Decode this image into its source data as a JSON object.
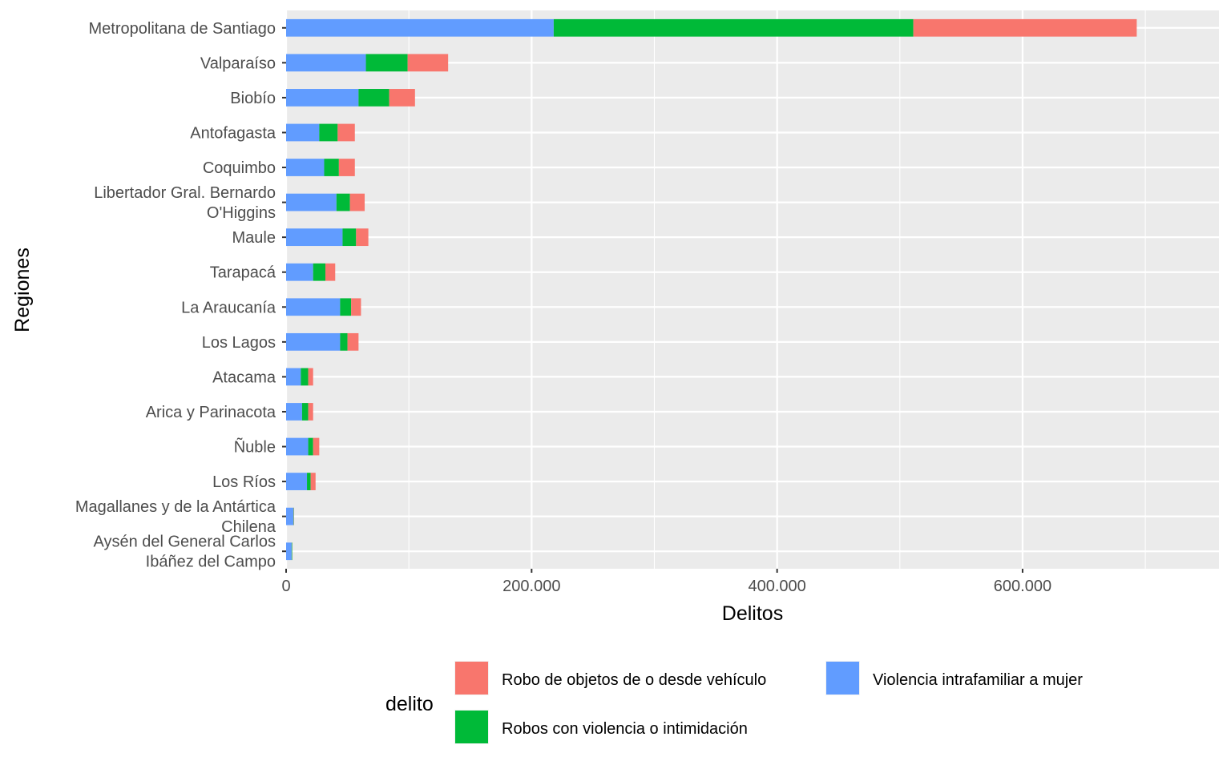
{
  "chart_data": {
    "type": "bar",
    "orientation": "horizontal",
    "stacked": true,
    "xlabel": "Delitos",
    "ylabel": "Regiones",
    "xlim": [
      0,
      760000
    ],
    "x_ticks": [
      0,
      200000,
      400000,
      600000
    ],
    "x_tick_labels": [
      "0",
      "200.000",
      "400.000",
      "600.000"
    ],
    "grid": true,
    "legend": {
      "title": "delito",
      "position": "bottom",
      "entries": [
        {
          "name": "Robo de objetos de o desde vehículo",
          "color": "#F8766D"
        },
        {
          "name": "Robos con violencia o intimidación",
          "color": "#00BA38"
        },
        {
          "name": "Violencia intrafamiliar a mujer",
          "color": "#619CFF"
        }
      ]
    },
    "categories": [
      [
        "Metropolitana de Santiago"
      ],
      [
        "Valparaíso"
      ],
      [
        "Biobío"
      ],
      [
        "Antofagasta"
      ],
      [
        "Coquimbo"
      ],
      [
        "Libertador Gral. Bernardo",
        "O'Higgins"
      ],
      [
        "Maule"
      ],
      [
        "Tarapacá"
      ],
      [
        "La Araucanía"
      ],
      [
        "Los Lagos"
      ],
      [
        "Atacama"
      ],
      [
        "Arica y Parinacota"
      ],
      [
        "Ñuble"
      ],
      [
        "Los Ríos"
      ],
      [
        "Magallanes y de la Antártica",
        "Chilena"
      ],
      [
        "Aysén del General Carlos",
        "Ibáñez del Campo"
      ]
    ],
    "series": [
      {
        "name": "Violencia intrafamiliar a mujer",
        "color": "#619CFF",
        "values": [
          218000,
          65000,
          59000,
          27000,
          31000,
          41000,
          46000,
          22000,
          44000,
          44000,
          12000,
          13000,
          18000,
          17000,
          6000,
          4500
        ]
      },
      {
        "name": "Robos con violencia o intimidación",
        "color": "#00BA38",
        "values": [
          293000,
          34000,
          25000,
          15000,
          12000,
          11000,
          11000,
          10000,
          9000,
          6000,
          6000,
          5000,
          4000,
          3000,
          300,
          400
        ]
      },
      {
        "name": "Robo de objetos de o desde vehículo",
        "color": "#F8766D",
        "values": [
          182000,
          33000,
          21000,
          14000,
          13000,
          12000,
          10000,
          8000,
          8000,
          9000,
          4000,
          4000,
          5000,
          4000,
          200,
          100
        ]
      }
    ]
  }
}
